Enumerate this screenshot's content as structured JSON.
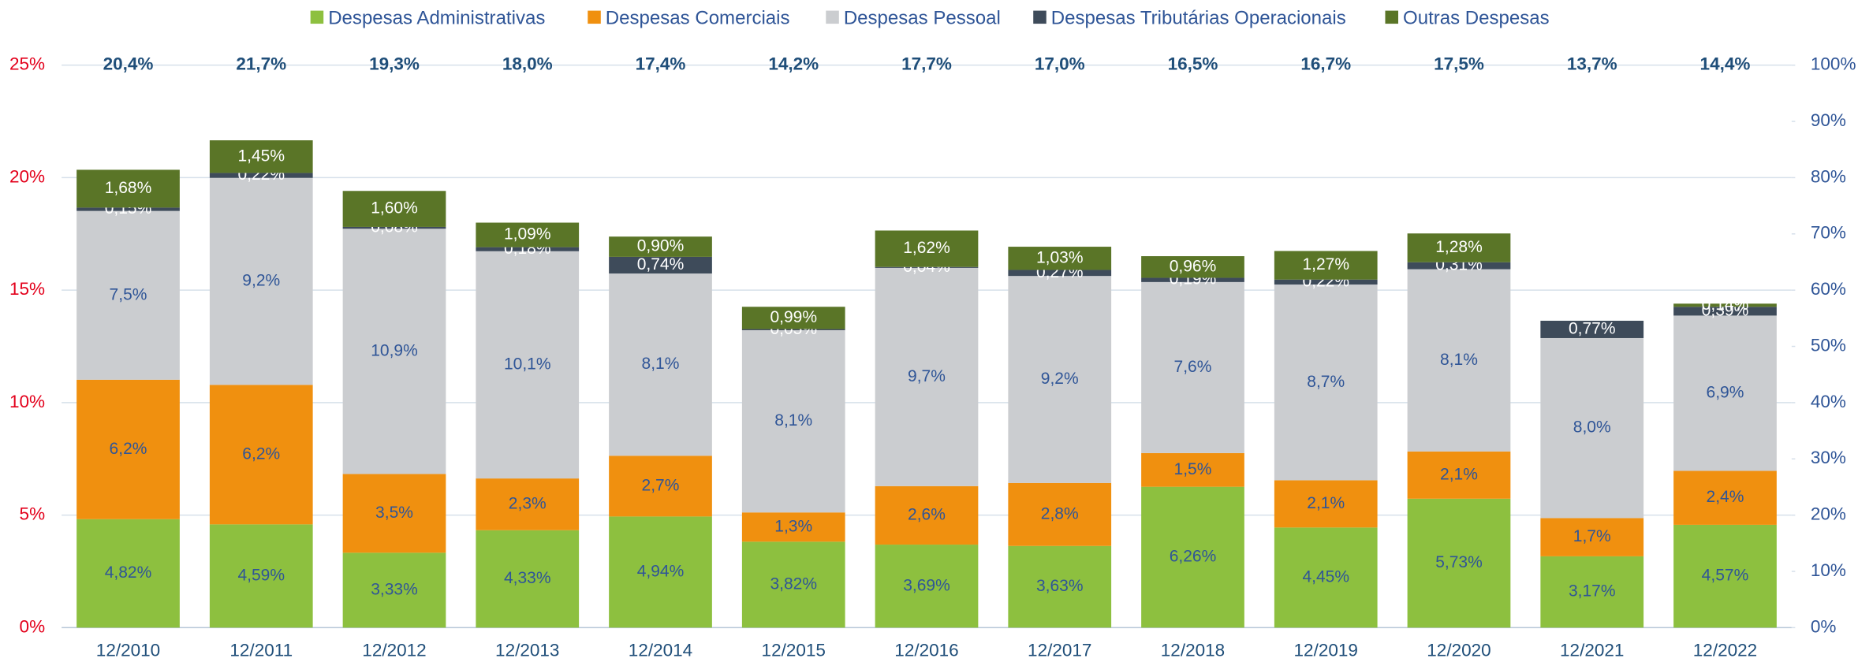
{
  "chart_data": {
    "type": "stacked_bar",
    "categories": [
      "12/2010",
      "12/2011",
      "12/2012",
      "12/2013",
      "12/2014",
      "12/2015",
      "12/2016",
      "12/2017",
      "12/2018",
      "12/2019",
      "12/2020",
      "12/2021",
      "12/2022"
    ],
    "series": [
      {
        "name": "Despesas Administrativas",
        "color": "#8dc03f",
        "label_color": "#2f5597",
        "values": [
          4.82,
          4.59,
          3.33,
          4.33,
          4.94,
          3.82,
          3.69,
          3.63,
          6.26,
          4.45,
          5.73,
          3.17,
          4.57
        ],
        "value_labels": [
          "4,82%",
          "4,59%",
          "3,33%",
          "4,33%",
          "4,94%",
          "3,82%",
          "3,69%",
          "3,63%",
          "6,26%",
          "4,45%",
          "5,73%",
          "3,17%",
          "4,57%"
        ]
      },
      {
        "name": "Despesas Comerciais",
        "color": "#f0900f",
        "label_color": "#2f5597",
        "values": [
          6.2,
          6.2,
          3.5,
          2.3,
          2.7,
          1.3,
          2.6,
          2.8,
          1.5,
          2.1,
          2.1,
          1.7,
          2.4
        ],
        "value_labels": [
          "6,2%",
          "6,2%",
          "3,5%",
          "2,3%",
          "2,7%",
          "1,3%",
          "2,6%",
          "2,8%",
          "1,5%",
          "2,1%",
          "2,1%",
          "1,7%",
          "2,4%"
        ]
      },
      {
        "name": "Despesas Pessoal",
        "color": "#cbcdd0",
        "label_color": "#2f5597",
        "values": [
          7.5,
          9.2,
          10.9,
          10.1,
          8.1,
          8.1,
          9.7,
          9.2,
          7.6,
          8.7,
          8.1,
          8.0,
          6.9
        ],
        "value_labels": [
          "7,5%",
          "9,2%",
          "10,9%",
          "10,1%",
          "8,1%",
          "8,1%",
          "9,7%",
          "9,2%",
          "7,6%",
          "8,7%",
          "8,1%",
          "8,0%",
          "6,9%"
        ]
      },
      {
        "name": "Despesas Tributárias Operacionais",
        "color": "#3e4b5a",
        "label_color": "#ffffff",
        "values": [
          0.15,
          0.22,
          0.08,
          0.18,
          0.74,
          0.05,
          0.04,
          0.27,
          0.19,
          0.22,
          0.31,
          0.77,
          0.39
        ],
        "value_labels": [
          "0,15%",
          "0,22%",
          "0,08%",
          "0,18%",
          "0,74%",
          "0,05%",
          "0,04%",
          "0,27%",
          "0,19%",
          "0,22%",
          "0,31%",
          "0,77%",
          "0,39%"
        ]
      },
      {
        "name": "Outras Despesas",
        "color": "#5a7527",
        "label_color": "#ffffff",
        "values": [
          1.68,
          1.45,
          1.6,
          1.09,
          0.9,
          0.99,
          1.62,
          1.03,
          0.96,
          1.27,
          1.28,
          null,
          0.14
        ],
        "value_labels": [
          "1,68%",
          "1,45%",
          "1,60%",
          "1,09%",
          "0,90%",
          "0,99%",
          "1,62%",
          "1,03%",
          "0,96%",
          "1,27%",
          "1,28%",
          null,
          "0,14%"
        ]
      }
    ],
    "totals": [
      20.4,
      21.7,
      19.3,
      18.0,
      17.4,
      14.2,
      17.7,
      17.0,
      16.5,
      16.7,
      17.5,
      13.7,
      14.4
    ],
    "total_labels": [
      "20,4%",
      "21,7%",
      "19,3%",
      "18,0%",
      "17,4%",
      "14,2%",
      "17,7%",
      "17,0%",
      "16,5%",
      "16,7%",
      "17,5%",
      "13,7%",
      "14,4%"
    ],
    "ylim": [
      0,
      25
    ],
    "yticks": [
      {
        "value": 0,
        "label": "0%"
      },
      {
        "value": 5,
        "label": "5%"
      },
      {
        "value": 10,
        "label": "10%"
      },
      {
        "value": 15,
        "label": "15%"
      },
      {
        "value": 20,
        "label": "20%"
      },
      {
        "value": 25,
        "label": "25%"
      }
    ],
    "y2lim": [
      0,
      100
    ],
    "y2ticks": [
      {
        "value": 0,
        "label": "0%"
      },
      {
        "value": 10,
        "label": "10%"
      },
      {
        "value": 20,
        "label": "20%"
      },
      {
        "value": 30,
        "label": "30%"
      },
      {
        "value": 40,
        "label": "40%"
      },
      {
        "value": 50,
        "label": "50%"
      },
      {
        "value": 60,
        "label": "60%"
      },
      {
        "value": 70,
        "label": "70%"
      },
      {
        "value": 80,
        "label": "80%"
      },
      {
        "value": 90,
        "label": "90%"
      },
      {
        "value": 100,
        "label": "100%"
      }
    ],
    "grid": true,
    "legend": "top"
  }
}
